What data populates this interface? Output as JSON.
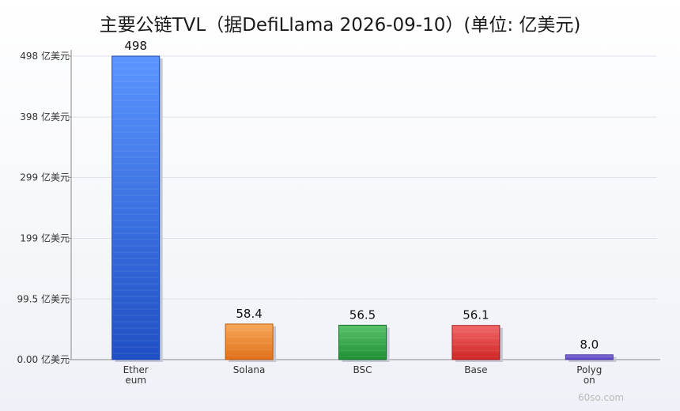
{
  "title": "主要公链TVL（据DefiLlama 2026-09-10）(单位: 亿美元)",
  "watermark": "60so.com",
  "chart_data": {
    "type": "bar",
    "title": "主要公链TVL（据DefiLlama 2026-09-10）(单位: 亿美元)",
    "categories": [
      "Ethereum",
      "Solana",
      "BSC",
      "Base",
      "Polygon"
    ],
    "category_display": [
      [
        "Ether",
        "eum"
      ],
      [
        "Solana"
      ],
      [
        "BSC"
      ],
      [
        "Base"
      ],
      [
        "Polyg",
        "on"
      ]
    ],
    "values": [
      498,
      58.4,
      56.5,
      56.1,
      8.0
    ],
    "value_labels": [
      "498",
      "58.4",
      "56.5",
      "56.1",
      "8.0"
    ],
    "yticks": [
      0,
      99.5,
      199,
      299,
      398,
      498
    ],
    "ytick_labels": [
      "0.00 亿美元",
      "99.5 亿美元",
      "199 亿美元",
      "299 亿美元",
      "398 亿美元",
      "498 亿美元"
    ],
    "ylim": [
      0,
      498
    ],
    "grid": true,
    "colors": [
      {
        "top": "#5a95ff",
        "bottom": "#1f4fc4",
        "stroke": "#1d46ad"
      },
      {
        "top": "#f7a95a",
        "bottom": "#df6f18",
        "stroke": "#b95a10"
      },
      {
        "top": "#59c26a",
        "bottom": "#1f8f35",
        "stroke": "#187028"
      },
      {
        "top": "#f26969",
        "bottom": "#cf2424",
        "stroke": "#a81c1c"
      },
      {
        "top": "#8a78dd",
        "bottom": "#5a40c0",
        "stroke": "#4a33a0"
      }
    ]
  }
}
